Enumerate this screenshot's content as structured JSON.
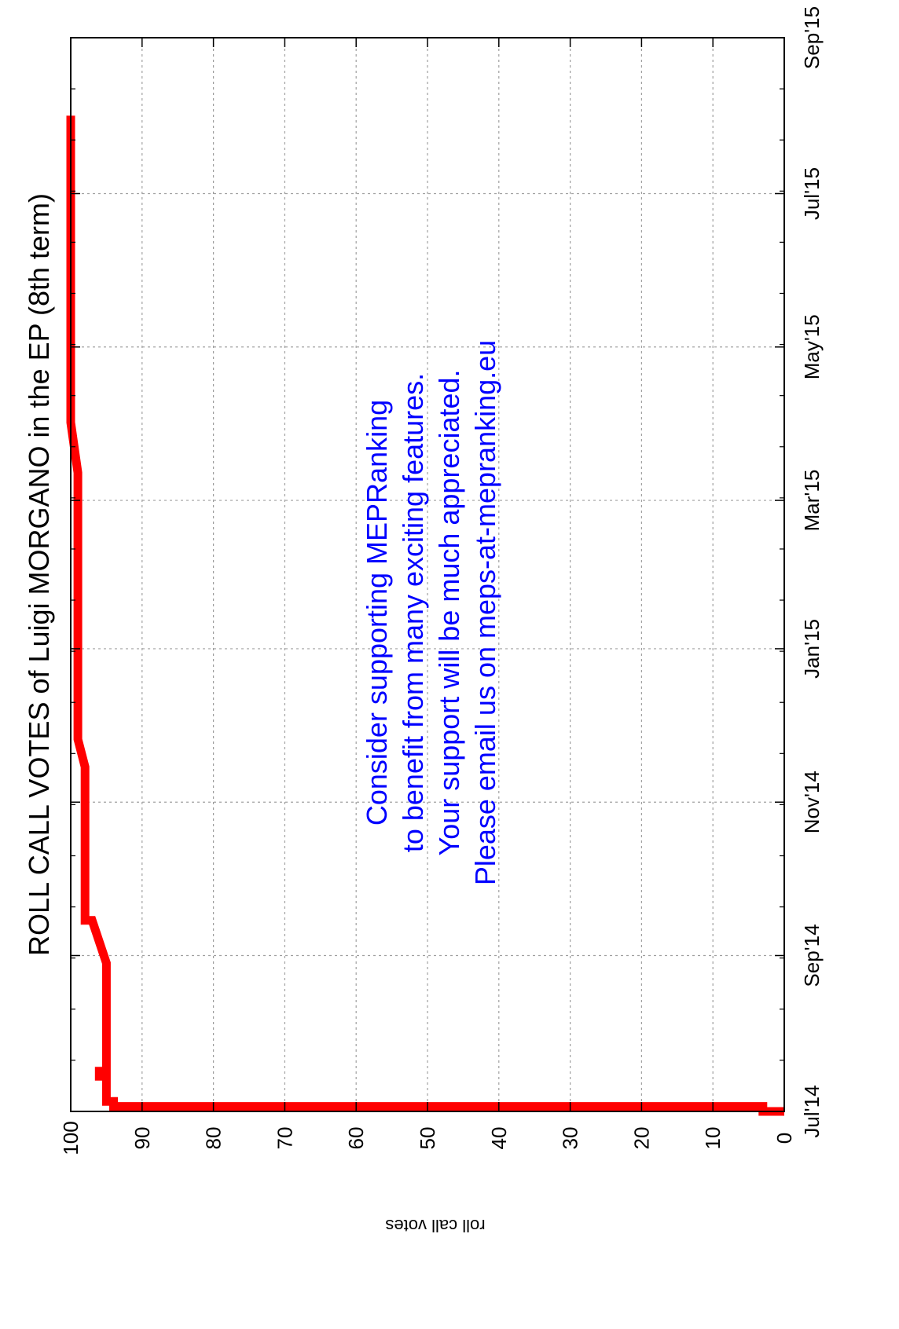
{
  "chart_data": {
    "type": "line",
    "title": "ROLL CALL VOTES of Luigi MORGANO in the EP (8th term)",
    "xlabel": "",
    "ylabel": "roll call votes",
    "xlim": [
      "2014-07-01",
      "2015-09-01"
    ],
    "ylim": [
      0,
      100
    ],
    "x_ticks": [
      {
        "date": "2014-07-01",
        "label": "Jul'14"
      },
      {
        "date": "2014-09-01",
        "label": "Sep'14"
      },
      {
        "date": "2014-11-01",
        "label": "Nov'14"
      },
      {
        "date": "2015-01-01",
        "label": "Jan'15"
      },
      {
        "date": "2015-03-01",
        "label": "Mar'15"
      },
      {
        "date": "2015-05-01",
        "label": "May'15"
      },
      {
        "date": "2015-07-01",
        "label": "Jul'15"
      },
      {
        "date": "2015-09-01",
        "label": "Sep'15"
      }
    ],
    "y_ticks": [
      0,
      10,
      20,
      30,
      40,
      50,
      60,
      70,
      80,
      90,
      100
    ],
    "grid": true,
    "orientation": "rotated 90° clockwise (page printed sideways)",
    "series": [
      {
        "color": "#ff0000",
        "x": [
          "2014-07-01",
          "2014-07-01",
          "2014-07-03",
          "2014-07-03",
          "2014-07-05",
          "2014-07-05",
          "2014-07-15",
          "2014-07-15",
          "2014-07-17",
          "2014-07-17",
          "2014-08-29",
          "2014-09-15",
          "2014-09-15",
          "2014-10-23",
          "2014-11-15",
          "2014-11-15",
          "2014-11-26",
          "2014-12-15",
          "2015-01-01",
          "2015-02-15",
          "2015-03-12",
          "2015-04-01",
          "2015-05-01",
          "2015-06-20",
          "2015-07-01",
          "2015-08-01"
        ],
        "y": [
          0,
          3,
          3,
          94,
          94,
          95,
          95,
          96,
          96,
          95,
          95,
          97,
          98,
          98,
          98,
          98,
          99,
          99,
          99,
          99,
          99,
          100,
          100,
          100,
          100,
          100
        ]
      }
    ]
  },
  "annotation": [
    "Consider supporting MEPRanking",
    "to benefit from many exciting features.",
    "Your support will be much appreciated.",
    "Please email us on meps-at-mepranking.eu"
  ],
  "colors": {
    "series": "#ff0000",
    "annotation": "#0000ff",
    "grid": "#a0a0a0",
    "axis": "#000000"
  }
}
